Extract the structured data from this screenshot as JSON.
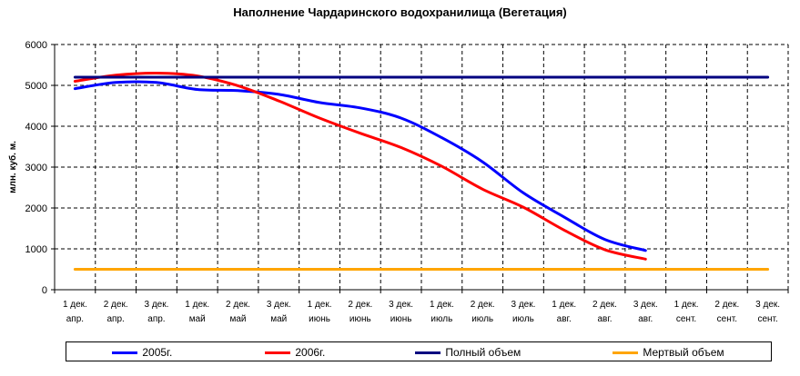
{
  "chart_data": {
    "type": "line",
    "title": "Наполнение Чардаринского водохранилища (Вегетация)",
    "ylabel": "млн. куб. м.",
    "xlabel": "",
    "ylim": [
      0,
      6000
    ],
    "yticks": [
      0,
      1000,
      2000,
      3000,
      4000,
      5000,
      6000
    ],
    "grid": true,
    "legend_position": "bottom",
    "categories": [
      [
        "1 дек.",
        "апр."
      ],
      [
        "2 дек.",
        "апр."
      ],
      [
        "3 дек.",
        "апр."
      ],
      [
        "1 дек.",
        "май"
      ],
      [
        "2 дек.",
        "май"
      ],
      [
        "3 дек.",
        "май"
      ],
      [
        "1 дек.",
        "июнь"
      ],
      [
        "2 дек.",
        "июнь"
      ],
      [
        "3 дек.",
        "июнь"
      ],
      [
        "1 дек.",
        "июль"
      ],
      [
        "2 дек.",
        "июль"
      ],
      [
        "3 дек.",
        "июль"
      ],
      [
        "1 дек.",
        "авг."
      ],
      [
        "2 дек.",
        "авг."
      ],
      [
        "3 дек.",
        "авг."
      ],
      [
        "1 дек.",
        "сент."
      ],
      [
        "2 дек.",
        "сент."
      ],
      [
        "3 дек.",
        "сент."
      ]
    ],
    "series": [
      {
        "name": "2005г.",
        "color": "#0000ff",
        "values": [
          4920,
          5070,
          5070,
          4900,
          4870,
          4780,
          4580,
          4450,
          4200,
          3720,
          3130,
          2370,
          1780,
          1230,
          960,
          null,
          null,
          null
        ]
      },
      {
        "name": "2006г.",
        "color": "#ff0000",
        "values": [
          5100,
          5250,
          5300,
          5230,
          4990,
          4620,
          4200,
          3830,
          3480,
          3020,
          2460,
          2020,
          1460,
          980,
          750,
          null,
          null,
          null
        ]
      },
      {
        "name": "Полный объем",
        "color": "#000080",
        "values": [
          5200,
          5200,
          5200,
          5200,
          5200,
          5200,
          5200,
          5200,
          5200,
          5200,
          5200,
          5200,
          5200,
          5200,
          5200,
          5200,
          5200,
          5200
        ]
      },
      {
        "name": "Мертвый объем",
        "color": "#ffa500",
        "values": [
          500,
          500,
          500,
          500,
          500,
          500,
          500,
          500,
          500,
          500,
          500,
          500,
          500,
          500,
          500,
          500,
          500,
          500
        ]
      }
    ]
  }
}
